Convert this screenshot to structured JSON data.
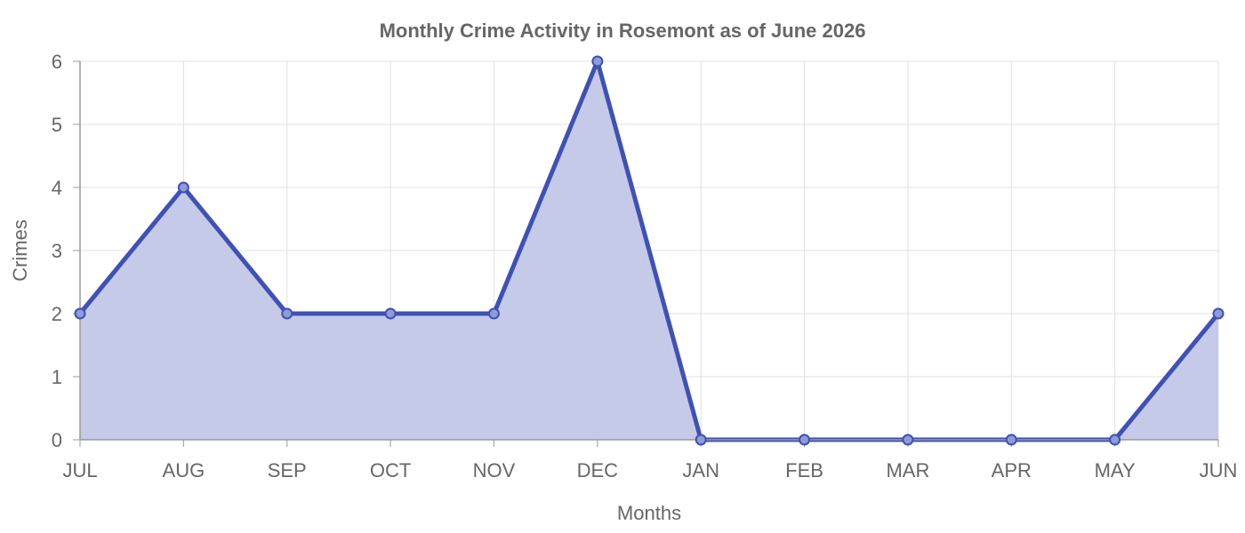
{
  "chart_data": {
    "type": "area",
    "title": "Monthly Crime Activity in Rosemont as of June 2026",
    "xlabel": "Months",
    "ylabel": "Crimes",
    "categories": [
      "JUL",
      "AUG",
      "SEP",
      "OCT",
      "NOV",
      "DEC",
      "JAN",
      "FEB",
      "MAR",
      "APR",
      "MAY",
      "JUN"
    ],
    "series": [
      {
        "values": [
          2,
          4,
          2,
          2,
          2,
          6,
          0,
          0,
          0,
          0,
          0,
          2
        ]
      }
    ],
    "ylim": [
      0,
      6
    ],
    "yticks": [
      "0",
      "1",
      "2",
      "3",
      "4",
      "5",
      "6"
    ],
    "grid": true,
    "colors": {
      "line": "#3f51b5",
      "fill": "#c5cae9",
      "text": "#666666",
      "grid": "#e0e0e0"
    }
  }
}
